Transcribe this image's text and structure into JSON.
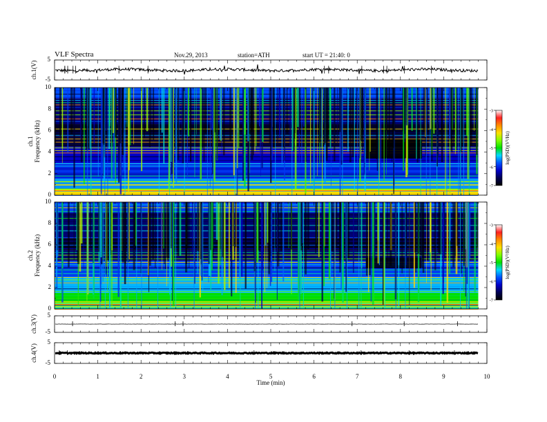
{
  "header": {
    "title": "VLF  Spectra",
    "date": "Nov.29, 2013",
    "station": "station=ATH",
    "start_ut": "start  UT  =   21:40: 0"
  },
  "colorbar": {
    "label": "log(PSD)(V²/Hz)",
    "ticks": [
      "-3",
      "-4",
      "-5",
      "-6",
      "-7"
    ],
    "stops": [
      "#ffffff",
      "#ff2020",
      "#ff8c00",
      "#ffe000",
      "#7fff00",
      "#00e000",
      "#00d8ff",
      "#0050ff",
      "#0000c8",
      "#000050",
      "#000000"
    ]
  },
  "chart_data": [
    {
      "type": "line",
      "panel": "ch.1 waveform",
      "ylabel": "ch.1(V)",
      "ylim": [
        -5,
        5
      ],
      "yticks": [
        "5",
        "-5"
      ],
      "xlim": [
        0,
        10
      ],
      "baseline": 0,
      "notes": "noisy trace near 0 V with small excursions"
    },
    {
      "type": "heatmap",
      "panel": "ch.1 spectrogram",
      "ylabel": "ch.1 Frequency (kHz)",
      "ylim": [
        0,
        10
      ],
      "yticks": [
        "10",
        "8",
        "6",
        "4",
        "2",
        "0"
      ],
      "xlim": [
        0,
        9.8
      ],
      "value_label": "log(PSD)(V²/Hz)",
      "value_range": [
        -7,
        -3
      ],
      "bands": [
        {
          "f_low": 9.0,
          "f_high": 10.0,
          "level": -5.8
        },
        {
          "f_low": 6.6,
          "f_high": 9.0,
          "level": -6.5
        },
        {
          "f_low": 5.5,
          "f_high": 6.6,
          "level": -6.8
        },
        {
          "f_low": 4.5,
          "f_high": 5.5,
          "level": -6.7
        },
        {
          "f_low": 3.0,
          "f_high": 4.5,
          "level": -6.2
        },
        {
          "f_low": 1.5,
          "f_high": 3.0,
          "level": -6.0
        },
        {
          "f_low": 0.6,
          "f_high": 1.5,
          "level": -5.6
        },
        {
          "f_low": 0.0,
          "f_high": 0.6,
          "level": -4.2
        }
      ],
      "quiet_region": {
        "t_start": 7.2,
        "t_end": 8.5,
        "f_low": 3.4,
        "f_high": 5.2,
        "level": -7.0
      }
    },
    {
      "type": "heatmap",
      "panel": "ch.2 spectrogram",
      "ylabel": "ch.2 Frequency (kHz)",
      "ylim": [
        0,
        10
      ],
      "yticks": [
        "10",
        "8",
        "6",
        "4",
        "2",
        "0"
      ],
      "xlim": [
        0,
        9.8
      ],
      "value_label": "log(PSD)(V²/Hz)",
      "value_range": [
        -7,
        -3
      ],
      "bands": [
        {
          "f_low": 9.0,
          "f_high": 10.0,
          "level": -5.9
        },
        {
          "f_low": 6.6,
          "f_high": 9.0,
          "level": -6.5
        },
        {
          "f_low": 5.5,
          "f_high": 6.6,
          "level": -6.8
        },
        {
          "f_low": 4.5,
          "f_high": 5.5,
          "level": -6.5
        },
        {
          "f_low": 3.0,
          "f_high": 4.5,
          "level": -5.9
        },
        {
          "f_low": 1.5,
          "f_high": 3.0,
          "level": -5.5
        },
        {
          "f_low": 0.6,
          "f_high": 1.5,
          "level": -5.0
        },
        {
          "f_low": 0.0,
          "f_high": 0.6,
          "level": -5.3
        }
      ],
      "quiet_region": {
        "t_start": 7.2,
        "t_end": 8.5,
        "f_low": 3.8,
        "f_high": 4.8,
        "level": -6.9
      }
    },
    {
      "type": "line",
      "panel": "ch.3 waveform",
      "ylabel": "ch.3(V)",
      "ylim": [
        -5,
        5
      ],
      "yticks": [
        "5",
        "-5"
      ],
      "xlim": [
        0,
        10
      ],
      "baseline": 0
    },
    {
      "type": "line",
      "panel": "ch.4 waveform",
      "ylabel": "ch.4(V)",
      "ylim": [
        -5,
        5
      ],
      "yticks": [
        "5",
        "-5"
      ],
      "xlim": [
        0,
        10
      ],
      "baseline": 0,
      "notes": "thick dense trace at 0 V"
    }
  ],
  "xaxis": {
    "label": "Time  (min)",
    "ticks": [
      "0",
      "1",
      "2",
      "3",
      "4",
      "5",
      "6",
      "7",
      "8",
      "9",
      "10"
    ]
  }
}
